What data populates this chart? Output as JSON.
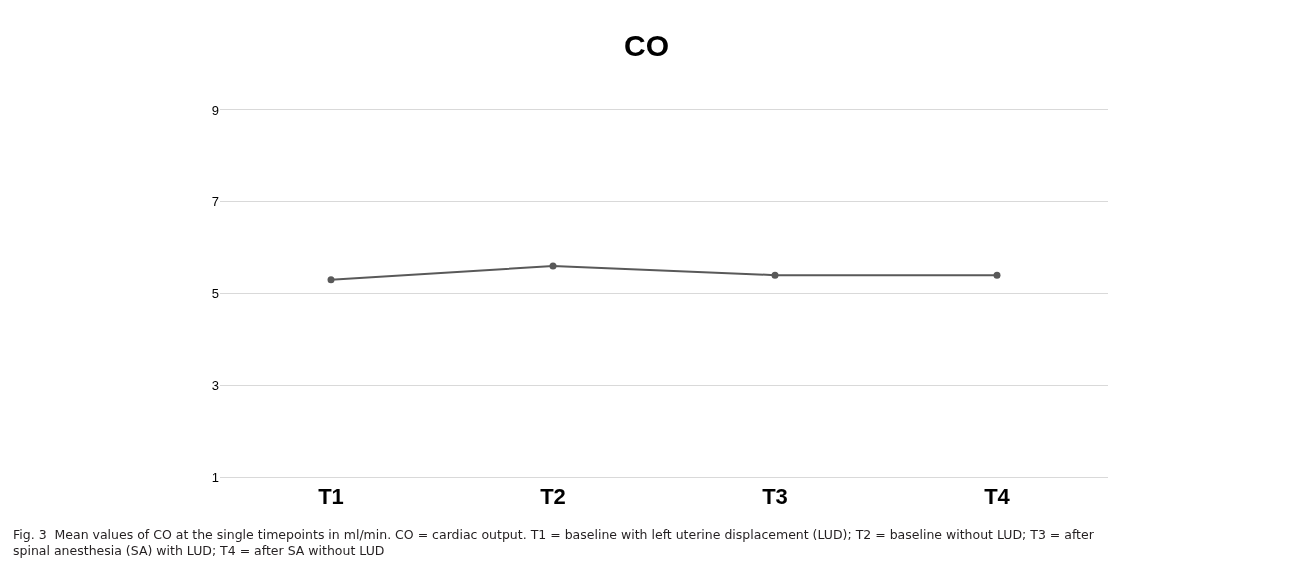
{
  "chart_data": {
    "type": "line",
    "title": "CO",
    "categories": [
      "T1",
      "T2",
      "T3",
      "T4"
    ],
    "series": [
      {
        "color": "#595959",
        "values": [
          5.3,
          5.6,
          5.4,
          5.4
        ]
      }
    ],
    "ylim": [
      1,
      9
    ],
    "yticks": [
      1,
      3,
      5,
      7,
      9
    ],
    "grid": "y",
    "marker": "circle",
    "line_style": "solid",
    "annotations": [
      "Fig. 3  Mean values of CO at the single timepoints in ml/min. CO = cardiac output. T1 = baseline with left uterine displacement (LUD); T2 = baseline without LUD; T3 = after spinal anesthesia (SA) with LUD; T4 = after SA without LUD"
    ]
  }
}
